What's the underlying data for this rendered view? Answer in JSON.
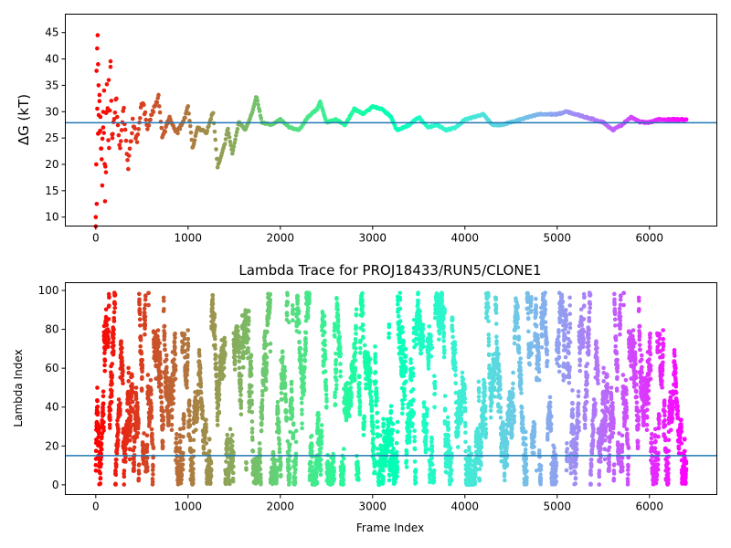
{
  "chart_data": [
    {
      "type": "scatter",
      "title": "",
      "xlabel": "",
      "ylabel": "ΔG (kT)",
      "xlim": [
        -330,
        6730
      ],
      "ylim": [
        8.3,
        48.5
      ],
      "xticks": [
        0,
        1000,
        2000,
        3000,
        4000,
        5000,
        6000
      ],
      "yticks": [
        10,
        15,
        20,
        25,
        30,
        35,
        40,
        45
      ],
      "grid": false,
      "colormap": "rainbow (red → violet with increasing frame index)",
      "hline": {
        "y": 27.9,
        "color": "#1f77b4"
      },
      "trace": [
        {
          "x": 0,
          "y": 10
        },
        {
          "x": 10,
          "y": 44
        },
        {
          "x": 20,
          "y": 22
        },
        {
          "x": 40,
          "y": 33
        },
        {
          "x": 60,
          "y": 20
        },
        {
          "x": 80,
          "y": 30
        },
        {
          "x": 100,
          "y": 17
        },
        {
          "x": 120,
          "y": 36
        },
        {
          "x": 140,
          "y": 21
        },
        {
          "x": 160,
          "y": 38.5
        },
        {
          "x": 180,
          "y": 24
        },
        {
          "x": 220,
          "y": 33
        },
        {
          "x": 260,
          "y": 22
        },
        {
          "x": 300,
          "y": 31
        },
        {
          "x": 350,
          "y": 19
        },
        {
          "x": 400,
          "y": 28
        },
        {
          "x": 450,
          "y": 24
        },
        {
          "x": 500,
          "y": 32.5
        },
        {
          "x": 560,
          "y": 27
        },
        {
          "x": 620,
          "y": 30
        },
        {
          "x": 680,
          "y": 33
        },
        {
          "x": 720,
          "y": 25
        },
        {
          "x": 800,
          "y": 29
        },
        {
          "x": 880,
          "y": 26
        },
        {
          "x": 950,
          "y": 28
        },
        {
          "x": 1000,
          "y": 31
        },
        {
          "x": 1050,
          "y": 23
        },
        {
          "x": 1100,
          "y": 27
        },
        {
          "x": 1200,
          "y": 26
        },
        {
          "x": 1270,
          "y": 30
        },
        {
          "x": 1320,
          "y": 19.5
        },
        {
          "x": 1400,
          "y": 24
        },
        {
          "x": 1430,
          "y": 27
        },
        {
          "x": 1480,
          "y": 22
        },
        {
          "x": 1550,
          "y": 28
        },
        {
          "x": 1620,
          "y": 26.5
        },
        {
          "x": 1700,
          "y": 30
        },
        {
          "x": 1740,
          "y": 33
        },
        {
          "x": 1800,
          "y": 28
        },
        {
          "x": 1900,
          "y": 27.5
        },
        {
          "x": 2000,
          "y": 28.5
        },
        {
          "x": 2100,
          "y": 27
        },
        {
          "x": 2200,
          "y": 26.5
        },
        {
          "x": 2300,
          "y": 29
        },
        {
          "x": 2400,
          "y": 30.5
        },
        {
          "x": 2430,
          "y": 32
        },
        {
          "x": 2500,
          "y": 28
        },
        {
          "x": 2600,
          "y": 28.5
        },
        {
          "x": 2700,
          "y": 27.5
        },
        {
          "x": 2800,
          "y": 30.5
        },
        {
          "x": 2900,
          "y": 29.5
        },
        {
          "x": 3000,
          "y": 31
        },
        {
          "x": 3100,
          "y": 30.5
        },
        {
          "x": 3200,
          "y": 29
        },
        {
          "x": 3260,
          "y": 26.5
        },
        {
          "x": 3400,
          "y": 27.5
        },
        {
          "x": 3500,
          "y": 29
        },
        {
          "x": 3600,
          "y": 27
        },
        {
          "x": 3700,
          "y": 27.5
        },
        {
          "x": 3800,
          "y": 26.5
        },
        {
          "x": 3900,
          "y": 27
        },
        {
          "x": 4000,
          "y": 28.5
        },
        {
          "x": 4100,
          "y": 29
        },
        {
          "x": 4200,
          "y": 29.5
        },
        {
          "x": 4300,
          "y": 27.5
        },
        {
          "x": 4400,
          "y": 27.5
        },
        {
          "x": 4500,
          "y": 28
        },
        {
          "x": 4600,
          "y": 28.5
        },
        {
          "x": 4700,
          "y": 29
        },
        {
          "x": 4800,
          "y": 29.5
        },
        {
          "x": 4900,
          "y": 29.5
        },
        {
          "x": 5000,
          "y": 29.5
        },
        {
          "x": 5100,
          "y": 30
        },
        {
          "x": 5200,
          "y": 29.5
        },
        {
          "x": 5300,
          "y": 29
        },
        {
          "x": 5400,
          "y": 28.5
        },
        {
          "x": 5500,
          "y": 28
        },
        {
          "x": 5600,
          "y": 26.5
        },
        {
          "x": 5700,
          "y": 27.5
        },
        {
          "x": 5800,
          "y": 29
        },
        {
          "x": 5900,
          "y": 28
        },
        {
          "x": 6000,
          "y": 28
        },
        {
          "x": 6100,
          "y": 28.5
        },
        {
          "x": 6200,
          "y": 28.5
        },
        {
          "x": 6300,
          "y": 28.5
        },
        {
          "x": 6400,
          "y": 28.5
        }
      ],
      "early_scatter": [
        {
          "x": 0,
          "y": 10
        },
        {
          "x": 5,
          "y": 20
        },
        {
          "x": 10,
          "y": 12.5
        },
        {
          "x": 15,
          "y": 42
        },
        {
          "x": 20,
          "y": 44.5
        },
        {
          "x": 25,
          "y": 39
        },
        {
          "x": 30,
          "y": 35
        },
        {
          "x": 35,
          "y": 26
        },
        {
          "x": 40,
          "y": 32
        },
        {
          "x": 50,
          "y": 29
        },
        {
          "x": 60,
          "y": 23
        },
        {
          "x": 70,
          "y": 16
        },
        {
          "x": 80,
          "y": 27
        },
        {
          "x": 90,
          "y": 34
        },
        {
          "x": 100,
          "y": 13
        },
        {
          "x": 110,
          "y": 18.5
        },
        {
          "x": 120,
          "y": 30
        },
        {
          "x": 140,
          "y": 36
        },
        {
          "x": 160,
          "y": 38.5
        },
        {
          "x": 180,
          "y": 25
        }
      ]
    },
    {
      "type": "scatter",
      "title": "Lambda Trace for PROJ18433/RUN5/CLONE1",
      "xlabel": "Frame Index",
      "ylabel": "Lambda Index",
      "xlim": [
        -330,
        6730
      ],
      "ylim": [
        -5,
        104
      ],
      "xticks": [
        0,
        1000,
        2000,
        3000,
        4000,
        5000,
        6000
      ],
      "yticks": [
        0,
        20,
        40,
        60,
        80,
        100
      ],
      "grid": false,
      "colormap": "rainbow (red → violet with increasing frame index)",
      "hline": {
        "y": 15,
        "color": "#1f77b4"
      },
      "x_range": [
        0,
        6400
      ],
      "y_range": [
        0,
        99
      ],
      "n_points": 6400
    }
  ]
}
